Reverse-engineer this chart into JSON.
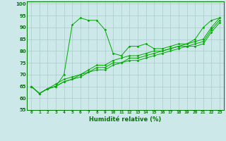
{
  "xlabel": "Humidité relative (%)",
  "bg_color": "#cce8e8",
  "grid_color": "#aacccc",
  "line_color": "#00aa00",
  "xlim": [
    -0.5,
    23.5
  ],
  "ylim": [
    55,
    101
  ],
  "yticks": [
    55,
    60,
    65,
    70,
    75,
    80,
    85,
    90,
    95,
    100
  ],
  "xticks": [
    0,
    1,
    2,
    3,
    4,
    5,
    6,
    7,
    8,
    9,
    10,
    11,
    12,
    13,
    14,
    15,
    16,
    17,
    18,
    19,
    20,
    21,
    22,
    23
  ],
  "series": [
    [
      65,
      62,
      64,
      65,
      70,
      91,
      94,
      93,
      93,
      89,
      79,
      78,
      82,
      82,
      83,
      81,
      81,
      82,
      83,
      83,
      85,
      90,
      93,
      94
    ],
    [
      65,
      62,
      64,
      66,
      68,
      69,
      70,
      72,
      74,
      74,
      76,
      77,
      78,
      78,
      79,
      80,
      80,
      81,
      82,
      83,
      84,
      85,
      90,
      94
    ],
    [
      65,
      62,
      64,
      65,
      67,
      68,
      70,
      71,
      73,
      73,
      75,
      75,
      77,
      77,
      78,
      79,
      80,
      81,
      82,
      82,
      83,
      84,
      89,
      93
    ],
    [
      65,
      62,
      64,
      65,
      67,
      68,
      69,
      71,
      72,
      72,
      74,
      75,
      76,
      76,
      77,
      78,
      79,
      80,
      81,
      82,
      82,
      83,
      88,
      92
    ]
  ]
}
